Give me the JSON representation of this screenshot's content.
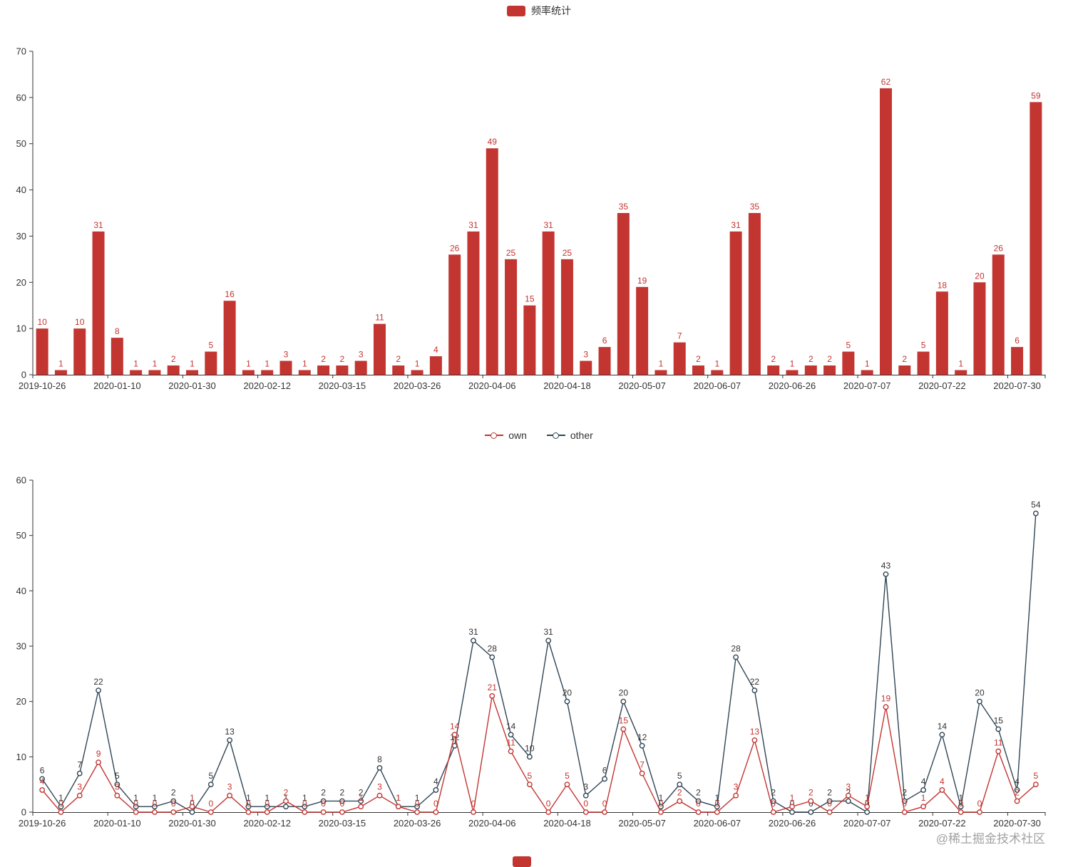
{
  "watermark": "@稀土掘金技术社区",
  "colors": {
    "bar": "#c23531",
    "own": "#c23531",
    "other": "#2f4554",
    "axis": "#333333",
    "own_label": "#c23531",
    "other_label": "#333333",
    "watermark": "#a2a2a2"
  },
  "chart_data": [
    {
      "type": "bar",
      "legend": "频率统计",
      "ylim": [
        0,
        70
      ],
      "y_ticks": [
        0,
        10,
        20,
        30,
        40,
        50,
        60,
        70
      ],
      "num_categories": 54,
      "x_tick_positions": [
        0,
        4,
        8,
        12,
        16,
        20,
        24,
        28,
        32,
        36,
        40,
        44,
        48,
        52
      ],
      "x_tick_labels": [
        "2019-10-26",
        "2020-01-10",
        "2020-01-30",
        "2020-02-12",
        "2020-03-15",
        "2020-03-26",
        "2020-04-06",
        "2020-04-18",
        "2020-05-07",
        "2020-06-07",
        "2020-06-26",
        "2020-07-07",
        "2020-07-22",
        "2020-07-30"
      ],
      "values": [
        10,
        1,
        10,
        31,
        8,
        1,
        1,
        2,
        1,
        5,
        16,
        1,
        1,
        3,
        1,
        2,
        2,
        3,
        11,
        2,
        1,
        4,
        26,
        31,
        49,
        25,
        15,
        31,
        25,
        3,
        6,
        35,
        19,
        1,
        7,
        2,
        1,
        31,
        35,
        2,
        1,
        2,
        2,
        5,
        1,
        62,
        2,
        5,
        18,
        1,
        20,
        26,
        6,
        59
      ]
    },
    {
      "type": "line",
      "ylim": [
        0,
        60
      ],
      "y_ticks": [
        0,
        10,
        20,
        30,
        40,
        50,
        60
      ],
      "num_categories": 54,
      "x_tick_positions": [
        0,
        4,
        8,
        12,
        16,
        20,
        24,
        28,
        32,
        36,
        40,
        44,
        48,
        52
      ],
      "x_tick_labels": [
        "2019-10-26",
        "2020-01-10",
        "2020-01-30",
        "2020-02-12",
        "2020-03-15",
        "2020-03-26",
        "2020-04-06",
        "2020-04-18",
        "2020-05-07",
        "2020-06-07",
        "2020-06-26",
        "2020-07-07",
        "2020-07-22",
        "2020-07-30"
      ],
      "series": [
        {
          "name": "own",
          "color": "#c23531",
          "label_color": "#c23531",
          "values": [
            4,
            0,
            3,
            9,
            3,
            0,
            0,
            0,
            1,
            0,
            3,
            0,
            0,
            2,
            0,
            0,
            0,
            1,
            3,
            1,
            0,
            0,
            14,
            0,
            21,
            11,
            5,
            0,
            5,
            0,
            0,
            15,
            7,
            0,
            2,
            0,
            0,
            3,
            13,
            0,
            1,
            2,
            0,
            3,
            1,
            19,
            0,
            1,
            4,
            0,
            0,
            11,
            2,
            5
          ]
        },
        {
          "name": "other",
          "color": "#2f4554",
          "label_color": "#333333",
          "values": [
            6,
            1,
            7,
            22,
            5,
            1,
            1,
            2,
            0,
            5,
            13,
            1,
            1,
            1,
            1,
            2,
            2,
            2,
            8,
            1,
            1,
            4,
            12,
            31,
            28,
            14,
            10,
            31,
            20,
            3,
            6,
            20,
            12,
            1,
            5,
            2,
            1,
            28,
            22,
            2,
            0,
            0,
            2,
            2,
            0,
            43,
            2,
            4,
            14,
            1,
            20,
            15,
            4,
            54
          ]
        }
      ]
    }
  ]
}
